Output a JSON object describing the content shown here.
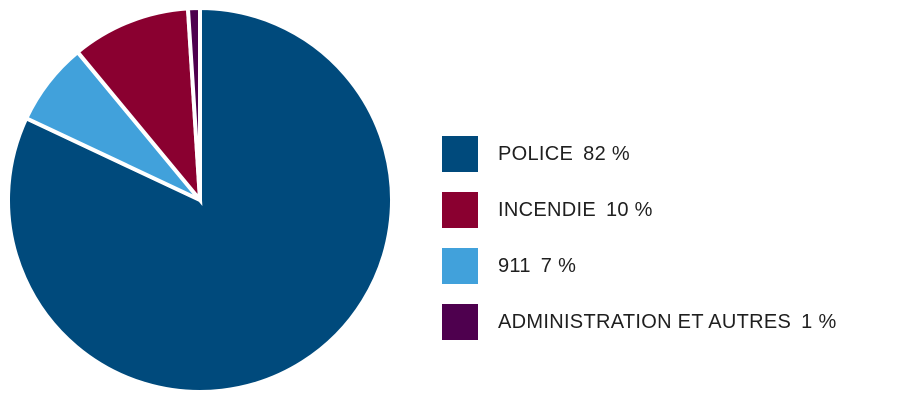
{
  "chart_data": {
    "type": "pie",
    "title": "",
    "legend_position": "right",
    "slices": [
      {
        "label": "POLICE",
        "value": 82,
        "display": "82 %",
        "color": "#004a7c"
      },
      {
        "label": "911",
        "value": 7,
        "display": "7 %",
        "color": "#41a1db"
      },
      {
        "label": "INCENDIE",
        "value": 10,
        "display": "10 %",
        "color": "#8a0030"
      },
      {
        "label": "ADMINISTRATION ET AUTRES",
        "value": 1,
        "display": "1 %",
        "color": "#4e004e"
      }
    ],
    "legend": [
      {
        "label": "POLICE",
        "display": "82 %",
        "color": "#004a7c"
      },
      {
        "label": "INCENDIE",
        "display": "10 %",
        "color": "#8a0030"
      },
      {
        "label": "911",
        "display": "7 %",
        "color": "#41a1db"
      },
      {
        "label": "ADMINISTRATION ET AUTRES",
        "display": "1 %",
        "color": "#4e004e"
      }
    ]
  }
}
